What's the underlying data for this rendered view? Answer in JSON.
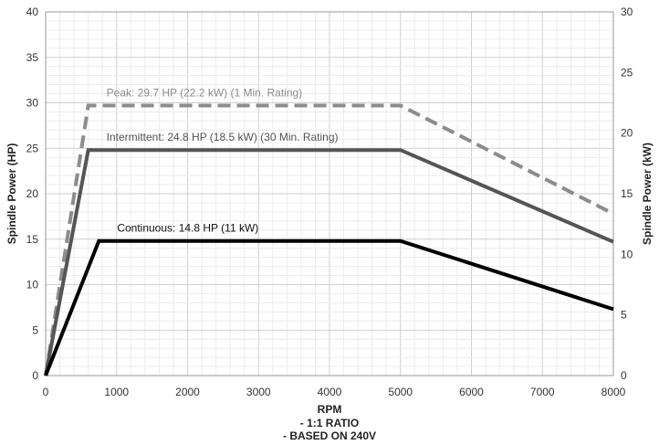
{
  "chart_data": {
    "type": "line",
    "xlabel": "RPM",
    "xlabel_notes": [
      "- 1:1 RATIO",
      "- BASED ON 240V"
    ],
    "ylabel_left": "Spindle Power (HP)",
    "ylabel_right": "Spindle Power (kW)",
    "xlim": [
      0,
      8000
    ],
    "ylim_left": [
      0,
      40
    ],
    "ylim_right": [
      0,
      30
    ],
    "x_ticks": [
      "0",
      "1000",
      "2000",
      "3000",
      "4000",
      "5000",
      "6000",
      "7000",
      "8000"
    ],
    "y_ticks_left": [
      "0",
      "5",
      "10",
      "15",
      "20",
      "25",
      "30",
      "35",
      "40"
    ],
    "y_ticks_right": [
      "0",
      "5",
      "10",
      "15",
      "20",
      "25",
      "30"
    ],
    "grid": true,
    "series": [
      {
        "name": "Peak: 29.7 HP (22.2 kW) (1 Min. Rating)",
        "color": "#8c8c8c",
        "style": "dashed",
        "points": [
          [
            0,
            0
          ],
          [
            600,
            29.7
          ],
          [
            5000,
            29.7
          ],
          [
            8000,
            17.8
          ]
        ]
      },
      {
        "name": "Intermittent: 24.8 HP (18.5 kW) (30 Min. Rating)",
        "color": "#555555",
        "style": "solid",
        "points": [
          [
            0,
            0
          ],
          [
            600,
            24.8
          ],
          [
            5000,
            24.8
          ],
          [
            8000,
            14.7
          ]
        ]
      },
      {
        "name": "Continuous: 14.8 HP (11 kW)",
        "color": "#000000",
        "style": "solid",
        "points": [
          [
            0,
            0
          ],
          [
            750,
            14.8
          ],
          [
            5000,
            14.8
          ],
          [
            8000,
            7.3
          ]
        ]
      }
    ]
  }
}
